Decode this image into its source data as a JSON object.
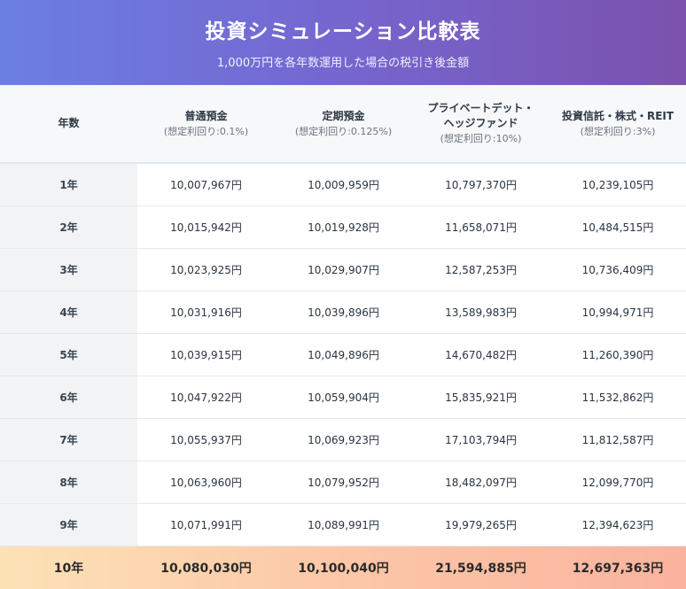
{
  "header": {
    "title": "投資シミュレーション比較表",
    "subtitle": "1,000万円を各年数運用した場合の税引き後金額"
  },
  "columns": [
    {
      "name": "年数",
      "rate": ""
    },
    {
      "name": "普通預金",
      "rate": "(想定利回り:0.1%)"
    },
    {
      "name": "定期預金",
      "rate": "(想定利回り:0.125%)"
    },
    {
      "name": "プライベートデット・ヘッジファンド",
      "name_line1": "プライベートデット・",
      "name_line2": "ヘッジファンド",
      "rate": "(想定利回り:10%)"
    },
    {
      "name": "投資信託・株式・REIT",
      "rate": "(想定利回り:3%)"
    }
  ],
  "rows": [
    {
      "year": "1年",
      "futsu": "10,007,967円",
      "teiki": "10,009,959円",
      "private": "10,797,370円",
      "toshin": "10,239,105円"
    },
    {
      "year": "2年",
      "futsu": "10,015,942円",
      "teiki": "10,019,928円",
      "private": "11,658,071円",
      "toshin": "10,484,515円"
    },
    {
      "year": "3年",
      "futsu": "10,023,925円",
      "teiki": "10,029,907円",
      "private": "12,587,253円",
      "toshin": "10,736,409円"
    },
    {
      "year": "4年",
      "futsu": "10,031,916円",
      "teiki": "10,039,896円",
      "private": "13,589,983円",
      "toshin": "10,994,971円"
    },
    {
      "year": "5年",
      "futsu": "10,039,915円",
      "teiki": "10,049,896円",
      "private": "14,670,482円",
      "toshin": "11,260,390円"
    },
    {
      "year": "6年",
      "futsu": "10,047,922円",
      "teiki": "10,059,904円",
      "private": "15,835,921円",
      "toshin": "11,532,862円"
    },
    {
      "year": "7年",
      "futsu": "10,055,937円",
      "teiki": "10,069,923円",
      "private": "17,103,794円",
      "toshin": "11,812,587円"
    },
    {
      "year": "8年",
      "futsu": "10,063,960円",
      "teiki": "10,079,952円",
      "private": "18,482,097円",
      "toshin": "12,099,770円"
    },
    {
      "year": "9年",
      "futsu": "10,071,991円",
      "teiki": "10,089,991円",
      "private": "19,979,265円",
      "toshin": "12,394,623円"
    }
  ],
  "final_row": {
    "year": "10年",
    "futsu": "10,080,030円",
    "teiki": "10,100,040円",
    "private": "21,594,885円",
    "toshin": "12,697,363円"
  },
  "colors": {
    "header_gradient_start": "#6b7fe3",
    "header_gradient_end": "#7b52ad",
    "final_row_start": "#fde2b6",
    "final_row_end": "#fab39e",
    "year_column_bg": "#f1f3f5"
  }
}
